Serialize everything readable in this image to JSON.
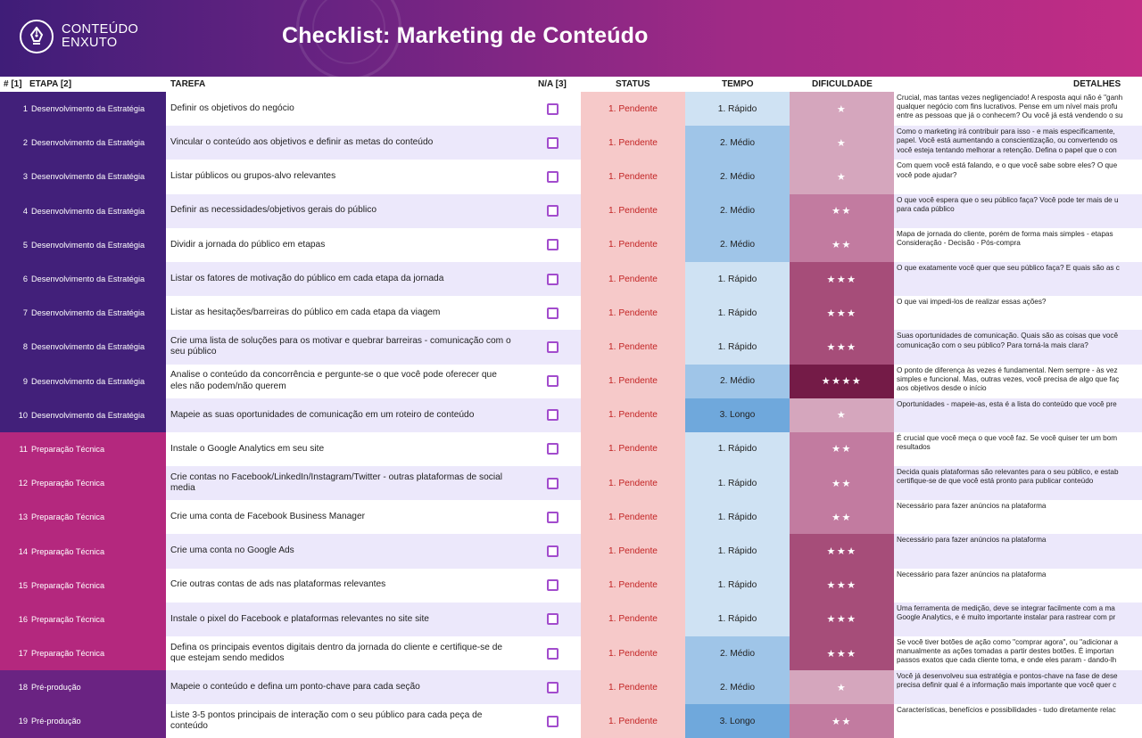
{
  "header": {
    "logo_line1": "CONTEÚDO",
    "logo_line2": "ENXUTO",
    "title": "Checklist: Marketing de Conteúdo",
    "gradient_start": "#3f1d78",
    "gradient_end": "#c22d85"
  },
  "columns": {
    "num": "# [1]",
    "etapa": "ETAPA [2]",
    "tarefa": "TAREFA",
    "na": "N/A [3]",
    "status": "STATUS",
    "tempo": "TEMPO",
    "dificuldade": "DIFICULDADE",
    "detalhes": "DETALHES"
  },
  "colors": {
    "stage_estrategia": "#42207a",
    "stage_tecnica": "#b4287e",
    "stage_preproducao": "#6a2382",
    "status_bg": "#f6c9c9",
    "status_text": "#c22424",
    "checkbox": "#a24ccd",
    "row_alt": "#ece8fb",
    "tempo_rapido": "#cfe2f3",
    "tempo_medio": "#9fc5e8",
    "tempo_longo": "#6fa8dc",
    "dif_1": "#d5a6bd",
    "dif_2": "#c27ba0",
    "dif_3": "#a64d79",
    "dif_4": "#741b47"
  },
  "rows": [
    {
      "num": "1",
      "etapa": "Desenvolvimento da Estratégia",
      "stage": "estrategia",
      "tarefa": "Definir os objetivos do negócio",
      "status": "1. Pendente",
      "tempo": "1. Rápido",
      "tempo_level": 1,
      "dificuldade": "★",
      "dif_level": 1,
      "detalhes": [
        "Crucial, mas tantas vezes negligenciado! A resposta aqui não é \"ganh",
        "qualquer negócio com fins lucrativos. Pense em um nível mais profu",
        "entre as pessoas que já o conhecem? Ou você já está vendendo o su"
      ]
    },
    {
      "num": "2",
      "etapa": "Desenvolvimento da Estratégia",
      "stage": "estrategia",
      "tarefa": "Vincular o conteúdo aos objetivos e definir as metas do conteúdo",
      "status": "1. Pendente",
      "tempo": "2. Médio",
      "tempo_level": 2,
      "dificuldade": "★",
      "dif_level": 1,
      "detalhes": [
        "Como o marketing irá contribuir para isso - e mais especificamente,",
        "papel. Você está aumentando a conscientização, ou convertendo os",
        "você esteja tentando melhorar a retenção. Defina o papel que o con"
      ]
    },
    {
      "num": "3",
      "etapa": "Desenvolvimento da Estratégia",
      "stage": "estrategia",
      "tarefa": "Listar públicos ou grupos-alvo relevantes",
      "status": "1. Pendente",
      "tempo": "2. Médio",
      "tempo_level": 2,
      "dificuldade": "★",
      "dif_level": 1,
      "detalhes": [
        "Com quem você está falando, e o que você sabe sobre eles? O que",
        "você pode ajudar?"
      ]
    },
    {
      "num": "4",
      "etapa": "Desenvolvimento da Estratégia",
      "stage": "estrategia",
      "tarefa": "Definir as necessidades/objetivos gerais do público",
      "status": "1. Pendente",
      "tempo": "2. Médio",
      "tempo_level": 2,
      "dificuldade": "★★",
      "dif_level": 2,
      "detalhes": [
        "O que você espera que o seu público faça? Você pode ter mais de u",
        "para cada público"
      ]
    },
    {
      "num": "5",
      "etapa": "Desenvolvimento da Estratégia",
      "stage": "estrategia",
      "tarefa": "Dividir a jornada do público em etapas",
      "status": "1. Pendente",
      "tempo": "2. Médio",
      "tempo_level": 2,
      "dificuldade": "★★",
      "dif_level": 2,
      "detalhes": [
        "Mapa de jornada do cliente, porém de forma mais simples - etapas",
        "Consideração - Decisão - Pós-compra"
      ]
    },
    {
      "num": "6",
      "etapa": "Desenvolvimento da Estratégia",
      "stage": "estrategia",
      "tarefa": "Listar os fatores de motivação do público em cada etapa da jornada",
      "status": "1. Pendente",
      "tempo": "1. Rápido",
      "tempo_level": 1,
      "dificuldade": "★★★",
      "dif_level": 3,
      "detalhes": [
        "O que exatamente você quer que seu público faça? E quais são as c"
      ]
    },
    {
      "num": "7",
      "etapa": "Desenvolvimento da Estratégia",
      "stage": "estrategia",
      "tarefa": "Listar as hesitações/barreiras do público em cada etapa da viagem",
      "status": "1. Pendente",
      "tempo": "1. Rápido",
      "tempo_level": 1,
      "dificuldade": "★★★",
      "dif_level": 3,
      "detalhes": [
        "O que vai impedi-los de realizar essas ações?"
      ]
    },
    {
      "num": "8",
      "etapa": "Desenvolvimento da Estratégia",
      "stage": "estrategia",
      "tarefa": "Crie uma lista de soluções para os motivar e quebrar barreiras - comunicação com o seu público",
      "status": "1. Pendente",
      "tempo": "1. Rápido",
      "tempo_level": 1,
      "dificuldade": "★★★",
      "dif_level": 3,
      "detalhes": [
        "Suas oportunidades de comunicação. Quais são as coisas que você",
        "comunicação com o seu público? Para torná-la mais clara?"
      ]
    },
    {
      "num": "9",
      "etapa": "Desenvolvimento da Estratégia",
      "stage": "estrategia",
      "tarefa": "Analise o conteúdo da concorrência e pergunte-se o que você pode oferecer que eles não podem/não querem",
      "status": "1. Pendente",
      "tempo": "2. Médio",
      "tempo_level": 2,
      "dificuldade": "★★★★",
      "dif_level": 4,
      "detalhes": [
        "O ponto de diferença às vezes é fundamental. Nem sempre - às vez",
        "simples e funcional. Mas, outras vezes, você precisa de algo que faç",
        "aos objetivos desde o início"
      ]
    },
    {
      "num": "10",
      "etapa": "Desenvolvimento da Estratégia",
      "stage": "estrategia",
      "tarefa": "Mapeie as suas oportunidades de comunicação em um roteiro de conteúdo",
      "status": "1. Pendente",
      "tempo": "3. Longo",
      "tempo_level": 3,
      "dificuldade": "★",
      "dif_level": 1,
      "detalhes": [
        "Oportunidades - mapeie-as, esta é a lista do conteúdo que você pre"
      ]
    },
    {
      "num": "11",
      "etapa": "Preparação Técnica",
      "stage": "tecnica",
      "tarefa": "Instale o Google Analytics em seu site",
      "status": "1. Pendente",
      "tempo": "1. Rápido",
      "tempo_level": 1,
      "dificuldade": "★★",
      "dif_level": 2,
      "detalhes": [
        "É crucial que você meça o que você faz. Se você quiser ter um bom",
        "resultados"
      ]
    },
    {
      "num": "12",
      "etapa": "Preparação Técnica",
      "stage": "tecnica",
      "tarefa": "Crie contas no Facebook/LinkedIn/Instagram/Twitter - outras plataformas de social media",
      "status": "1. Pendente",
      "tempo": "1. Rápido",
      "tempo_level": 1,
      "dificuldade": "★★",
      "dif_level": 2,
      "detalhes": [
        "Decida quais plataformas são relevantes para o seu público, e estab",
        "certifique-se de que você está pronto para publicar conteúdo"
      ]
    },
    {
      "num": "13",
      "etapa": "Preparação Técnica",
      "stage": "tecnica",
      "tarefa": "Crie uma conta de Facebook Business Manager",
      "status": "1. Pendente",
      "tempo": "1. Rápido",
      "tempo_level": 1,
      "dificuldade": "★★",
      "dif_level": 2,
      "detalhes": [
        "Necessário para fazer anúncios na plataforma"
      ]
    },
    {
      "num": "14",
      "etapa": "Preparação Técnica",
      "stage": "tecnica",
      "tarefa": "Crie uma conta no Google Ads",
      "status": "1. Pendente",
      "tempo": "1. Rápido",
      "tempo_level": 1,
      "dificuldade": "★★★",
      "dif_level": 3,
      "detalhes": [
        "Necessário para fazer anúncios na plataforma"
      ]
    },
    {
      "num": "15",
      "etapa": "Preparação Técnica",
      "stage": "tecnica",
      "tarefa": "Crie outras contas de ads nas plataformas relevantes",
      "status": "1. Pendente",
      "tempo": "1. Rápido",
      "tempo_level": 1,
      "dificuldade": "★★★",
      "dif_level": 3,
      "detalhes": [
        "Necessário para fazer anúncios na plataforma"
      ]
    },
    {
      "num": "16",
      "etapa": "Preparação Técnica",
      "stage": "tecnica",
      "tarefa": "Instale o pixel do Facebook e plataformas relevantes no site site",
      "status": "1. Pendente",
      "tempo": "1. Rápido",
      "tempo_level": 1,
      "dificuldade": "★★★",
      "dif_level": 3,
      "detalhes": [
        "Uma ferramenta de medição, deve se integrar facilmente com a ma",
        "Google Analytics, e é muito importante instalar para rastrear com pr"
      ]
    },
    {
      "num": "17",
      "etapa": "Preparação Técnica",
      "stage": "tecnica",
      "tarefa": "Defina os principais eventos digitais dentro da jornada do cliente e certifique-se de que estejam sendo medidos",
      "status": "1. Pendente",
      "tempo": "2. Médio",
      "tempo_level": 2,
      "dificuldade": "★★★",
      "dif_level": 3,
      "detalhes": [
        "Se você tiver botões de ação como \"comprar agora\", ou \"adicionar a",
        "manualmente as ações tomadas a partir destes botões. É importan",
        "passos exatos que cada cliente toma, e onde eles param - dando-lh"
      ]
    },
    {
      "num": "18",
      "etapa": "Pré-produção",
      "stage": "preproducao",
      "tarefa": "Mapeie o conteúdo e defina um ponto-chave para cada seção",
      "status": "1. Pendente",
      "tempo": "2. Médio",
      "tempo_level": 2,
      "dificuldade": "★",
      "dif_level": 1,
      "detalhes": [
        "Você já desenvolveu sua estratégia e pontos-chave na fase de dese",
        "precisa definir qual é a informação mais importante que você quer c"
      ]
    },
    {
      "num": "19",
      "etapa": "Pré-produção",
      "stage": "preproducao",
      "tarefa": "Liste 3-5 pontos principais de interação com o seu público para cada peça de conteúdo",
      "status": "1. Pendente",
      "tempo": "3. Longo",
      "tempo_level": 3,
      "dificuldade": "★★",
      "dif_level": 2,
      "detalhes": [
        "Características, benefícios e possibilidades - tudo diretamente relac"
      ]
    }
  ]
}
